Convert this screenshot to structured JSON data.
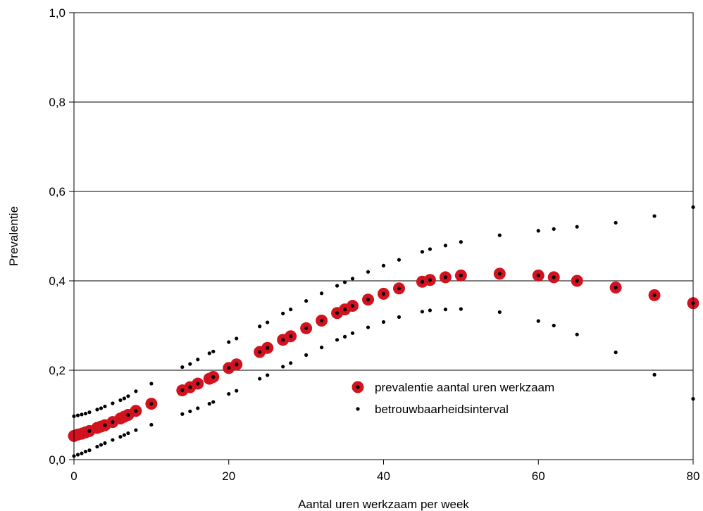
{
  "colors": {
    "prevalence_outer": "#d2131f",
    "prevalence_inner": "#000000",
    "interval_dot": "#000000",
    "grid": "#000000"
  },
  "chart_data": {
    "type": "scatter",
    "xlabel": "Aantal uren werkzaam per week",
    "ylabel": "Prevalentie",
    "xlim": [
      0,
      80
    ],
    "ylim": [
      0,
      1.0
    ],
    "x_ticks": [
      "0",
      "20",
      "40",
      "60",
      "80"
    ],
    "y_ticks": [
      "0,0",
      "0,2",
      "0,4",
      "0,6",
      "0,8",
      "1,0"
    ],
    "grid": "horizontal",
    "legend_position": "lower-right",
    "series": [
      {
        "name": "prevalentie aantal uren werkzaam",
        "marker": "large red circle with black center",
        "points": [
          [
            0,
            0.053
          ],
          [
            0.5,
            0.056
          ],
          [
            1,
            0.058
          ],
          [
            1.5,
            0.061
          ],
          [
            2,
            0.064
          ],
          [
            3,
            0.071
          ],
          [
            3.5,
            0.074
          ],
          [
            4,
            0.077
          ],
          [
            5,
            0.084
          ],
          [
            6,
            0.092
          ],
          [
            6.5,
            0.096
          ],
          [
            7,
            0.1
          ],
          [
            8,
            0.109
          ],
          [
            10,
            0.125
          ],
          [
            14,
            0.155
          ],
          [
            15,
            0.162
          ],
          [
            16,
            0.17
          ],
          [
            17.5,
            0.181
          ],
          [
            18,
            0.185
          ],
          [
            20,
            0.205
          ],
          [
            21,
            0.213
          ],
          [
            24,
            0.241
          ],
          [
            25,
            0.25
          ],
          [
            27,
            0.268
          ],
          [
            28,
            0.276
          ],
          [
            30,
            0.294
          ],
          [
            32,
            0.311
          ],
          [
            34,
            0.328
          ],
          [
            35,
            0.336
          ],
          [
            36,
            0.344
          ],
          [
            38,
            0.358
          ],
          [
            40,
            0.371
          ],
          [
            42,
            0.383
          ],
          [
            45,
            0.398
          ],
          [
            46,
            0.402
          ],
          [
            48,
            0.408
          ],
          [
            50,
            0.412
          ],
          [
            55,
            0.416
          ],
          [
            60,
            0.412
          ],
          [
            62,
            0.408
          ],
          [
            65,
            0.4
          ],
          [
            70,
            0.385
          ],
          [
            75,
            0.368
          ],
          [
            80,
            0.35
          ]
        ]
      },
      {
        "name": "betrouwbaarheidsinterval",
        "marker": "small black dot",
        "upper": [
          [
            0,
            0.097
          ],
          [
            0.5,
            0.099
          ],
          [
            1,
            0.101
          ],
          [
            1.5,
            0.103
          ],
          [
            2,
            0.106
          ],
          [
            3,
            0.112
          ],
          [
            3.5,
            0.115
          ],
          [
            4,
            0.119
          ],
          [
            5,
            0.126
          ],
          [
            6,
            0.133
          ],
          [
            6.5,
            0.137
          ],
          [
            7,
            0.142
          ],
          [
            8,
            0.153
          ],
          [
            10,
            0.17
          ],
          [
            14,
            0.207
          ],
          [
            15,
            0.214
          ],
          [
            16,
            0.224
          ],
          [
            17.5,
            0.238
          ],
          [
            18,
            0.242
          ],
          [
            20,
            0.263
          ],
          [
            21,
            0.271
          ],
          [
            24,
            0.298
          ],
          [
            25,
            0.307
          ],
          [
            27,
            0.327
          ],
          [
            28,
            0.336
          ],
          [
            30,
            0.355
          ],
          [
            32,
            0.372
          ],
          [
            34,
            0.389
          ],
          [
            35,
            0.397
          ],
          [
            36,
            0.405
          ],
          [
            38,
            0.42
          ],
          [
            40,
            0.434
          ],
          [
            42,
            0.447
          ],
          [
            45,
            0.465
          ],
          [
            46,
            0.471
          ],
          [
            48,
            0.479
          ],
          [
            50,
            0.487
          ],
          [
            55,
            0.502
          ],
          [
            60,
            0.512
          ],
          [
            62,
            0.516
          ],
          [
            65,
            0.521
          ],
          [
            70,
            0.53
          ],
          [
            75,
            0.545
          ],
          [
            80,
            0.565
          ]
        ],
        "lower": [
          [
            0,
            0.008
          ],
          [
            0.5,
            0.011
          ],
          [
            1,
            0.014
          ],
          [
            1.5,
            0.018
          ],
          [
            2,
            0.021
          ],
          [
            3,
            0.029
          ],
          [
            3.5,
            0.033
          ],
          [
            4,
            0.037
          ],
          [
            5,
            0.044
          ],
          [
            6,
            0.051
          ],
          [
            6.5,
            0.055
          ],
          [
            7,
            0.059
          ],
          [
            8,
            0.066
          ],
          [
            10,
            0.078
          ],
          [
            14,
            0.102
          ],
          [
            15,
            0.108
          ],
          [
            16,
            0.115
          ],
          [
            17.5,
            0.125
          ],
          [
            18,
            0.129
          ],
          [
            20,
            0.147
          ],
          [
            21,
            0.154
          ],
          [
            24,
            0.181
          ],
          [
            25,
            0.189
          ],
          [
            27,
            0.208
          ],
          [
            28,
            0.216
          ],
          [
            30,
            0.234
          ],
          [
            32,
            0.251
          ],
          [
            34,
            0.268
          ],
          [
            35,
            0.275
          ],
          [
            36,
            0.283
          ],
          [
            38,
            0.296
          ],
          [
            40,
            0.308
          ],
          [
            42,
            0.319
          ],
          [
            45,
            0.331
          ],
          [
            46,
            0.334
          ],
          [
            48,
            0.336
          ],
          [
            50,
            0.337
          ],
          [
            55,
            0.33
          ],
          [
            60,
            0.31
          ],
          [
            62,
            0.3
          ],
          [
            65,
            0.28
          ],
          [
            70,
            0.24
          ],
          [
            75,
            0.19
          ],
          [
            80,
            0.136
          ]
        ]
      }
    ]
  }
}
